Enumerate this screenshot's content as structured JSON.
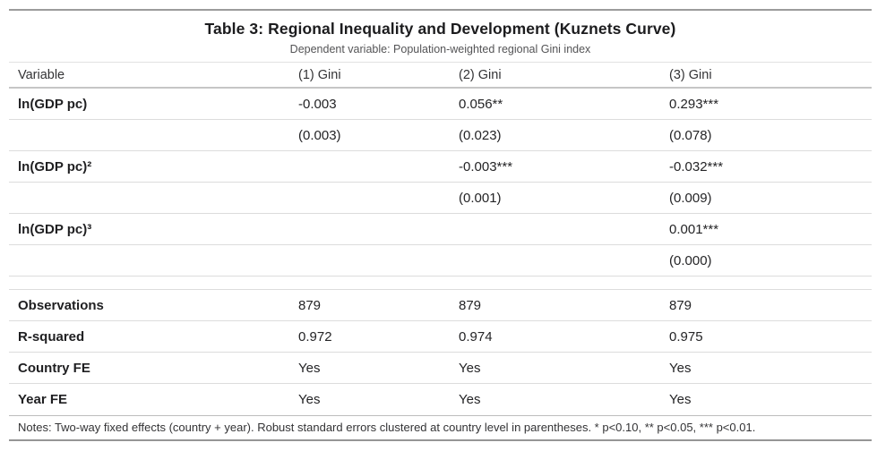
{
  "table": {
    "title": "Table 3: Regional Inequality and Development (Kuznets Curve)",
    "subtitle": "Dependent variable: Population-weighted regional Gini index",
    "columns": [
      "Variable",
      "(1) Gini",
      "(2) Gini",
      "(3) Gini"
    ],
    "rows": [
      {
        "label": "ln(GDP pc)",
        "c1": "-0.003",
        "c2": "0.056**",
        "c3": "0.293***"
      },
      {
        "label": "",
        "c1": "(0.003)",
        "c2": "(0.023)",
        "c3": "(0.078)"
      },
      {
        "label": "ln(GDP pc)²",
        "c1": "",
        "c2": "-0.003***",
        "c3": "-0.032***"
      },
      {
        "label": "",
        "c1": "",
        "c2": "(0.001)",
        "c3": "(0.009)"
      },
      {
        "label": "ln(GDP pc)³",
        "c1": "",
        "c2": "",
        "c3": "0.001***"
      },
      {
        "label": "",
        "c1": "",
        "c2": "",
        "c3": "(0.000)"
      },
      {
        "label": "Observations",
        "c1": "879",
        "c2": "879",
        "c3": "879"
      },
      {
        "label": "R-squared",
        "c1": "0.972",
        "c2": "0.974",
        "c3": "0.975"
      },
      {
        "label": "Country FE",
        "c1": "Yes",
        "c2": "Yes",
        "c3": "Yes"
      },
      {
        "label": "Year FE",
        "c1": "Yes",
        "c2": "Yes",
        "c3": "Yes"
      }
    ],
    "notes": "Notes: Two-way fixed effects (country + year). Robust standard errors clustered at country level in parentheses. * p<0.10, ** p<0.05, *** p<0.01."
  },
  "colors": {
    "outer_rule": "#9b9b9b",
    "header_rule": "#c6c6c6",
    "row_rule": "#dcdcdc",
    "pre_notes_rule": "#bdbdbd",
    "title_text": "#1c1c1e",
    "subtitle_text": "#545456",
    "body_text": "#242426"
  }
}
